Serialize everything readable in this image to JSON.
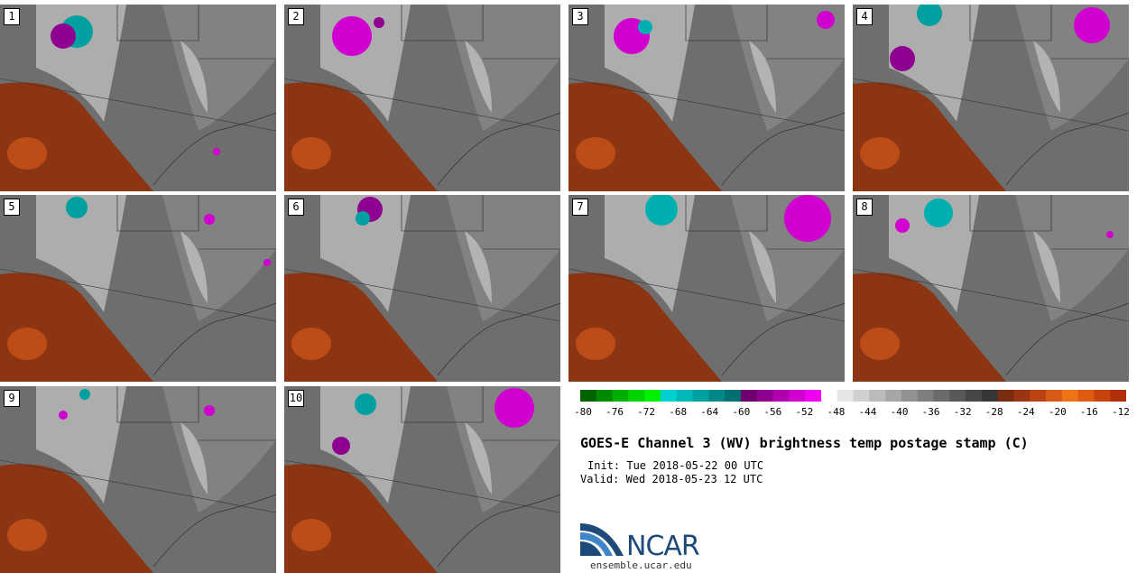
{
  "panels": [
    {
      "label": "1"
    },
    {
      "label": "2"
    },
    {
      "label": "3"
    },
    {
      "label": "4"
    },
    {
      "label": "5"
    },
    {
      "label": "6"
    },
    {
      "label": "7"
    },
    {
      "label": "8"
    },
    {
      "label": "9"
    },
    {
      "label": "10"
    }
  ],
  "colorbar": {
    "ticks": [
      "-80",
      "-76",
      "-72",
      "-68",
      "-64",
      "-60",
      "-56",
      "-52",
      "-48",
      "-44",
      "-40",
      "-36",
      "-32",
      "-28",
      "-24",
      "-20",
      "-16",
      "-12"
    ],
    "colors": [
      "#006400",
      "#008a00",
      "#00b000",
      "#00d400",
      "#00f000",
      "#00d0d0",
      "#00b8b8",
      "#00a0a0",
      "#008888",
      "#007070",
      "#700070",
      "#900090",
      "#b000b0",
      "#d000d0",
      "#f000f0",
      "#ffffff",
      "#e6e6e6",
      "#d0d0d0",
      "#bbbbbb",
      "#a6a6a6",
      "#929292",
      "#7e7e7e",
      "#6b6b6b",
      "#595959",
      "#474747",
      "#363636",
      "#7a2c10",
      "#9a3512",
      "#bb4414",
      "#d85a16",
      "#ee7418",
      "#e05a12",
      "#c8420e",
      "#b0300a"
    ]
  },
  "title": "GOES-E Channel 3 (WV) brightness temp postage stamp (C)",
  "init": "Init: Tue 2018-05-22 00 UTC",
  "valid": "Valid: Wed 2018-05-23 12 UTC",
  "logo": {
    "text": "NCAR",
    "url": "ensemble.ucar.edu"
  }
}
